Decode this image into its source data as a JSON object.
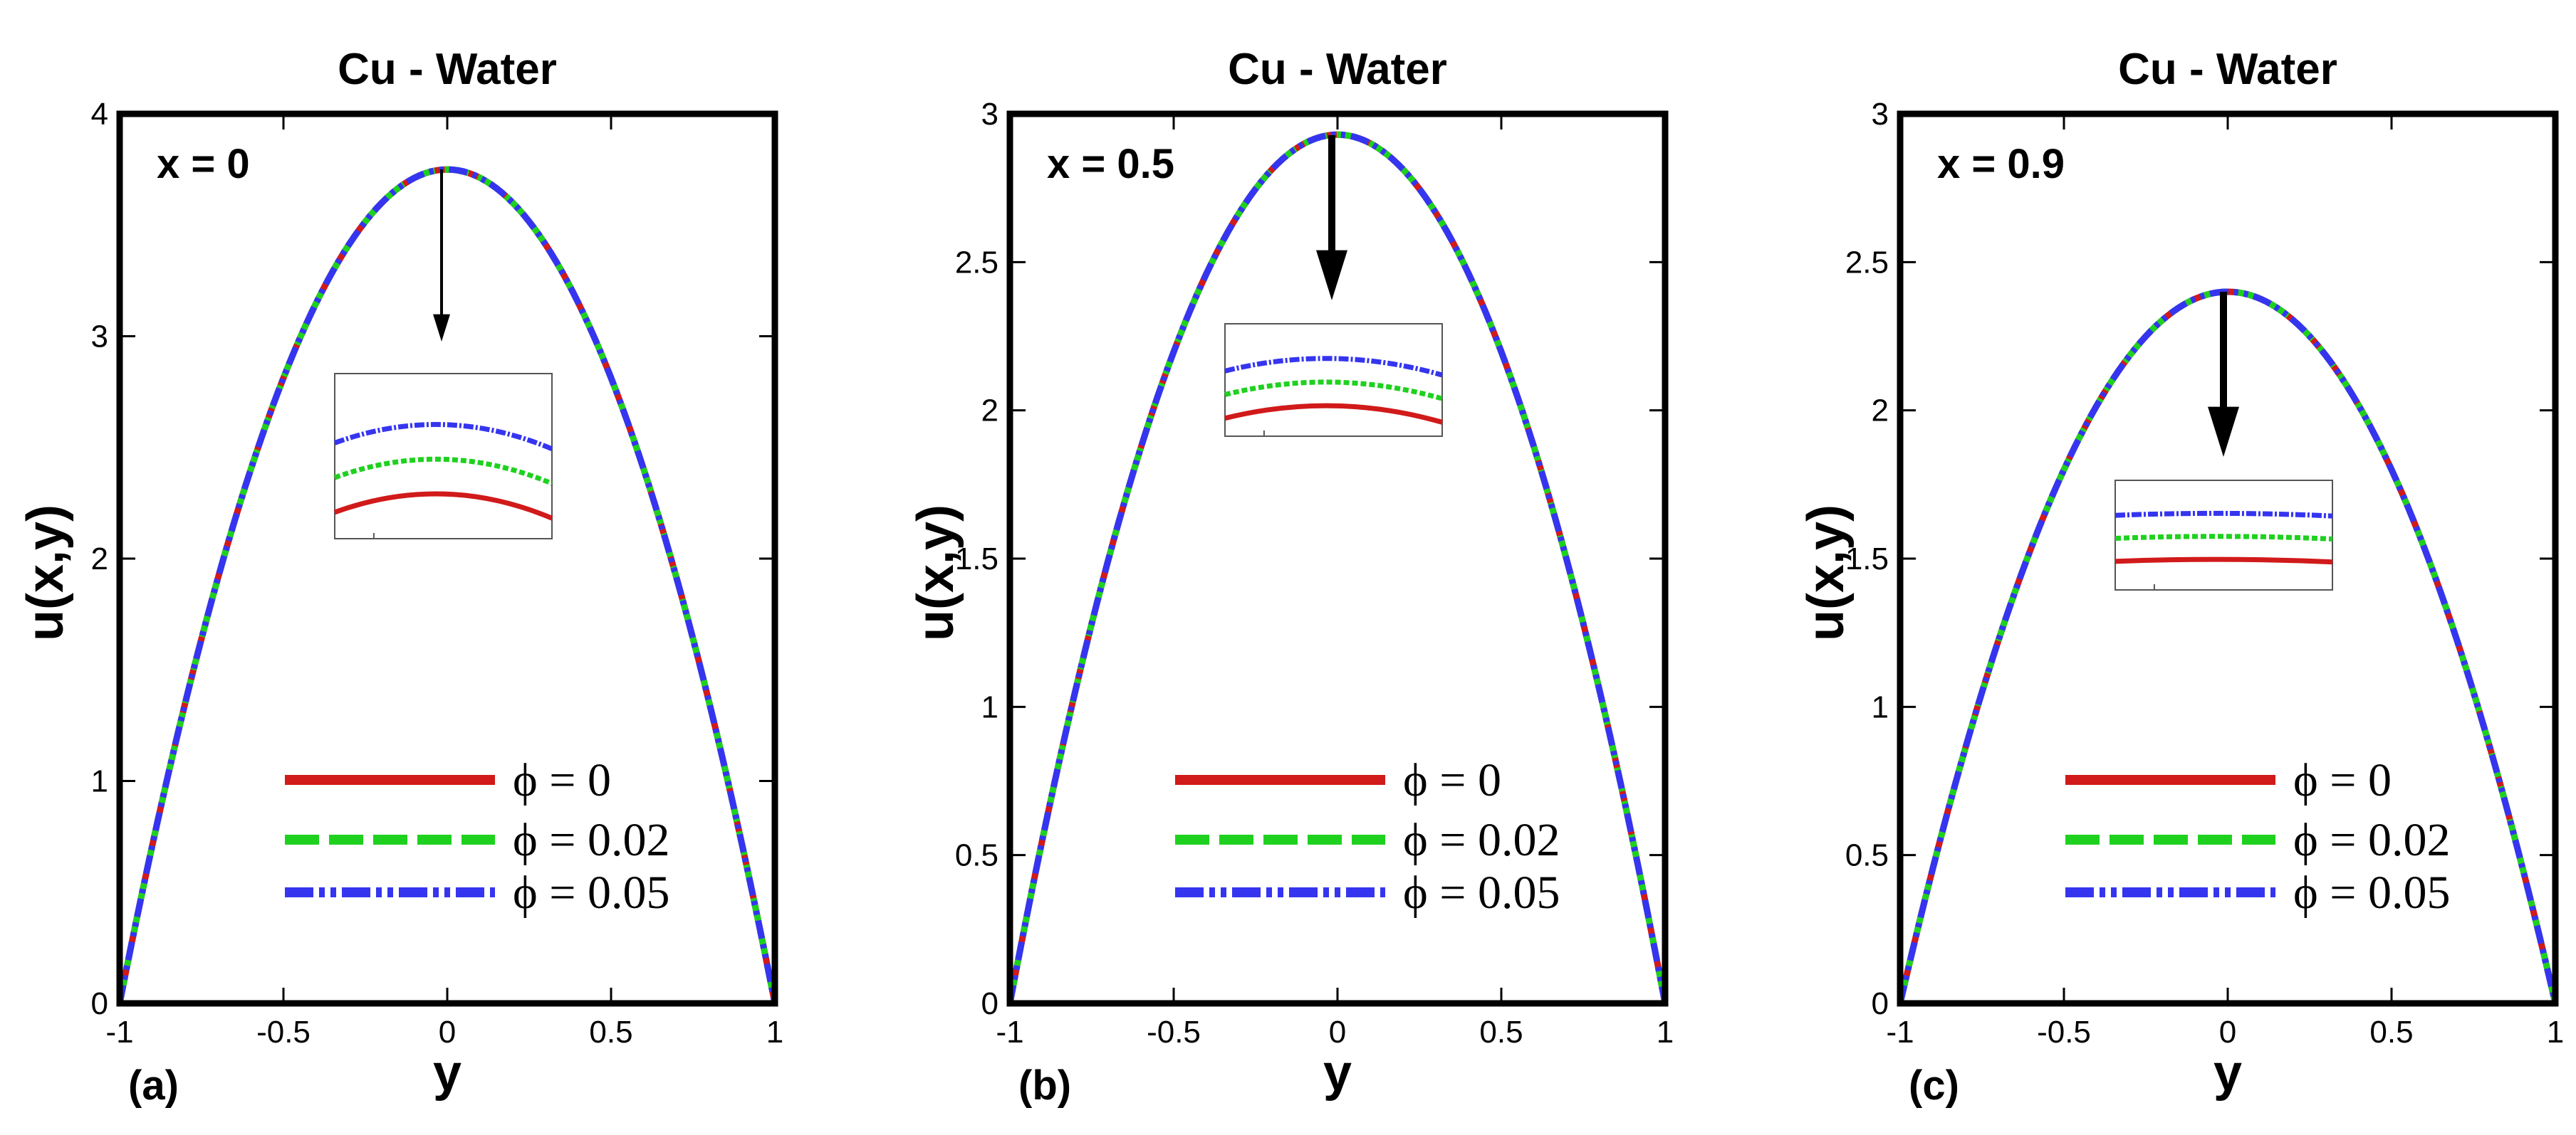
{
  "figure": {
    "legend": [
      {
        "label": "ϕ = 0",
        "color": "#d11a1a",
        "style": "solid"
      },
      {
        "label": "ϕ = 0.02",
        "color": "#1fd11f",
        "style": "dashed"
      },
      {
        "label": "ϕ = 0.05",
        "color": "#3535f0",
        "style": "dashdot"
      }
    ],
    "xlabel": "y",
    "ylabel": "u(x,y)"
  },
  "chart_data": [
    {
      "type": "line",
      "title": "Cu - Water",
      "panel_label": "(a)",
      "annotation": "x = 0",
      "xlabel": "y",
      "ylabel": "u(x,y)",
      "xlim": [
        -1,
        1
      ],
      "ylim": [
        0,
        4
      ],
      "xticks": [
        "-1",
        "-0.5",
        "0",
        "0.5",
        "1"
      ],
      "yticks": [
        "0",
        "1",
        "2",
        "3",
        "4"
      ],
      "series": [
        {
          "name": "ϕ = 0",
          "color": "#d11a1a",
          "style": "solid",
          "peak": 3.75
        },
        {
          "name": "ϕ = 0.02",
          "color": "#1fd11f",
          "style": "dashed",
          "peak": 3.75
        },
        {
          "name": "ϕ = 0.05",
          "color": "#3535f0",
          "style": "dashdot",
          "peak": 3.75
        }
      ],
      "inset_offsets": [
        0.0,
        0.5,
        1.0
      ]
    },
    {
      "type": "line",
      "title": "Cu - Water",
      "panel_label": "(b)",
      "annotation": "x = 0.5",
      "xlabel": "y",
      "ylabel": "u(x,y)",
      "xlim": [
        -1,
        1
      ],
      "ylim": [
        0,
        3
      ],
      "xticks": [
        "-1",
        "-0.5",
        "0",
        "0.5",
        "1"
      ],
      "yticks": [
        "0",
        "0.5",
        "1",
        "1.5",
        "2",
        "2.5",
        "3"
      ],
      "series": [
        {
          "name": "ϕ = 0",
          "color": "#d11a1a",
          "style": "solid",
          "peak": 2.93
        },
        {
          "name": "ϕ = 0.02",
          "color": "#1fd11f",
          "style": "dashed",
          "peak": 2.93
        },
        {
          "name": "ϕ = 0.05",
          "color": "#3535f0",
          "style": "dashdot",
          "peak": 2.93
        }
      ],
      "inset_offsets": [
        0.0,
        0.5,
        1.0
      ]
    },
    {
      "type": "line",
      "title": "Cu - Water",
      "panel_label": "(c)",
      "annotation": "x = 0.9",
      "xlabel": "y",
      "ylabel": "u(x,y)",
      "xlim": [
        -1,
        1
      ],
      "ylim": [
        0,
        3
      ],
      "xticks": [
        "-1",
        "-0.5",
        "0",
        "0.5",
        "1"
      ],
      "yticks": [
        "0",
        "0.5",
        "1",
        "1.5",
        "2",
        "2.5",
        "3"
      ],
      "series": [
        {
          "name": "ϕ = 0",
          "color": "#d11a1a",
          "style": "solid",
          "peak": 2.4
        },
        {
          "name": "ϕ = 0.02",
          "color": "#1fd11f",
          "style": "dashed",
          "peak": 2.4
        },
        {
          "name": "ϕ = 0.05",
          "color": "#3535f0",
          "style": "dashdot",
          "peak": 2.4
        }
      ],
      "inset_offsets": [
        0.0,
        0.25,
        0.5
      ]
    }
  ]
}
